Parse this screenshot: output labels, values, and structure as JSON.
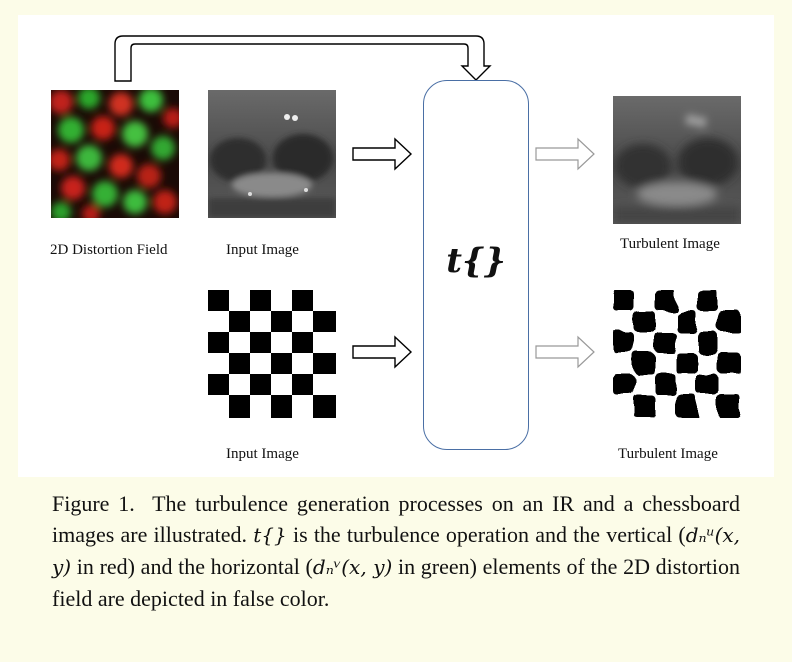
{
  "labels": {
    "distortion": "2D Distortion Field",
    "input_ir": "Input Image",
    "input_chess": "Input Image",
    "turb_ir": "Turbulent Image",
    "turb_chess": "Turbulent Image"
  },
  "operator": "t{}",
  "caption": {
    "lead": "Figure 1.",
    "p1": "The turbulence generation processes on an IR and a chessboard images are illustrated.",
    "op": "t{}",
    "p2": "is the turbulence operation and the vertical (",
    "math_u": "dₙᵘ(x, y)",
    "p3": "in red) and the horizontal (",
    "math_v": "dₙᵛ(x, y)",
    "p4": "in green) elements of the 2D distortion field are depicted in false color."
  }
}
